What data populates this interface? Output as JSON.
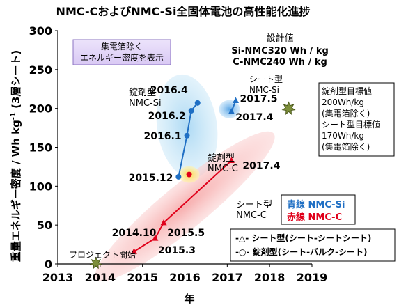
{
  "chart_data": {
    "type": "line",
    "title": "NMC-CおよびNMC-Si全固体電池の高性能化進捗",
    "xlabel": "年",
    "ylabel_main": "重量エネルギー密度 / Wh kg",
    "ylabel_sup": "-1",
    "ylabel_suffix": " (3層シート)",
    "xlim": [
      2013,
      2019
    ],
    "ylim": [
      0,
      300
    ],
    "xticks": [
      2013,
      2014,
      2015,
      2016,
      2017,
      2018,
      2019
    ],
    "yticks": [
      0,
      50,
      100,
      150,
      200,
      250,
      300
    ],
    "grid": false,
    "series": [
      {
        "name": "NMC-Si",
        "marker": "circle",
        "color": "#1f6fc4",
        "points": [
          {
            "x": 2015.85,
            "y": 112,
            "label": "2015.12"
          },
          {
            "x": 2016.05,
            "y": 165,
            "label": "2016.1"
          },
          {
            "x": 2016.15,
            "y": 197,
            "label": "2016.2"
          },
          {
            "x": 2016.3,
            "y": 207,
            "label": "2016.4"
          }
        ]
      },
      {
        "name": "NMC-C",
        "marker": "triangle",
        "color": "#e0001a",
        "points": [
          {
            "x": 2014.8,
            "y": 16,
            "label": "2014.10"
          },
          {
            "x": 2015.3,
            "y": 33,
            "label": "2015.3"
          },
          {
            "x": 2015.5,
            "y": 53,
            "label": "2015.5"
          },
          {
            "x": 2017.1,
            "y": 133,
            "label": "2017.4"
          }
        ]
      },
      {
        "name": "Si-NMC sheet",
        "marker": "triangle",
        "color": "#1f6fc4",
        "points": [
          {
            "x": 2017.1,
            "y": 196,
            "label": "2017.4"
          },
          {
            "x": 2017.2,
            "y": 210,
            "label": "2017.5"
          }
        ]
      },
      {
        "name": "NMC-C pellet",
        "marker": "circle",
        "color": "#e0001a",
        "points": [
          {
            "x": 2016.1,
            "y": 115,
            "label": ""
          }
        ]
      }
    ],
    "targets": [
      {
        "x": 2018.45,
        "y": 200
      },
      {
        "x": 2013.9,
        "y": 1
      }
    ],
    "annotations": {
      "tag_box": "集電箔除く\nエネルギー密度を表示",
      "design_title": "設計値",
      "design_si": "Si-NMC320 Wh / kg",
      "design_c": "C-NMC240 Wh / kg",
      "sheet_si": "シート型\nNMC-Si",
      "pellet_si": "錠剤型\nNMC-Si",
      "pellet_c": "錠剤型\nNMC-C",
      "sheet_c": "シート型\nNMC-C",
      "target_text": "錠剤型目標値\n200Wh/kg\n(集電箔除く)\nシート型目標値\n170Wh/kg\n(集電箔除く)",
      "project_start": "プロジェクト開始",
      "legend_blue": "青線 NMC-Si",
      "legend_red": "赤線 NMC-C",
      "legend_tri": "-△- シート型(シート-シートシート)",
      "legend_circ": "-○- 錠剤型(シート-バルク-シート)"
    }
  }
}
